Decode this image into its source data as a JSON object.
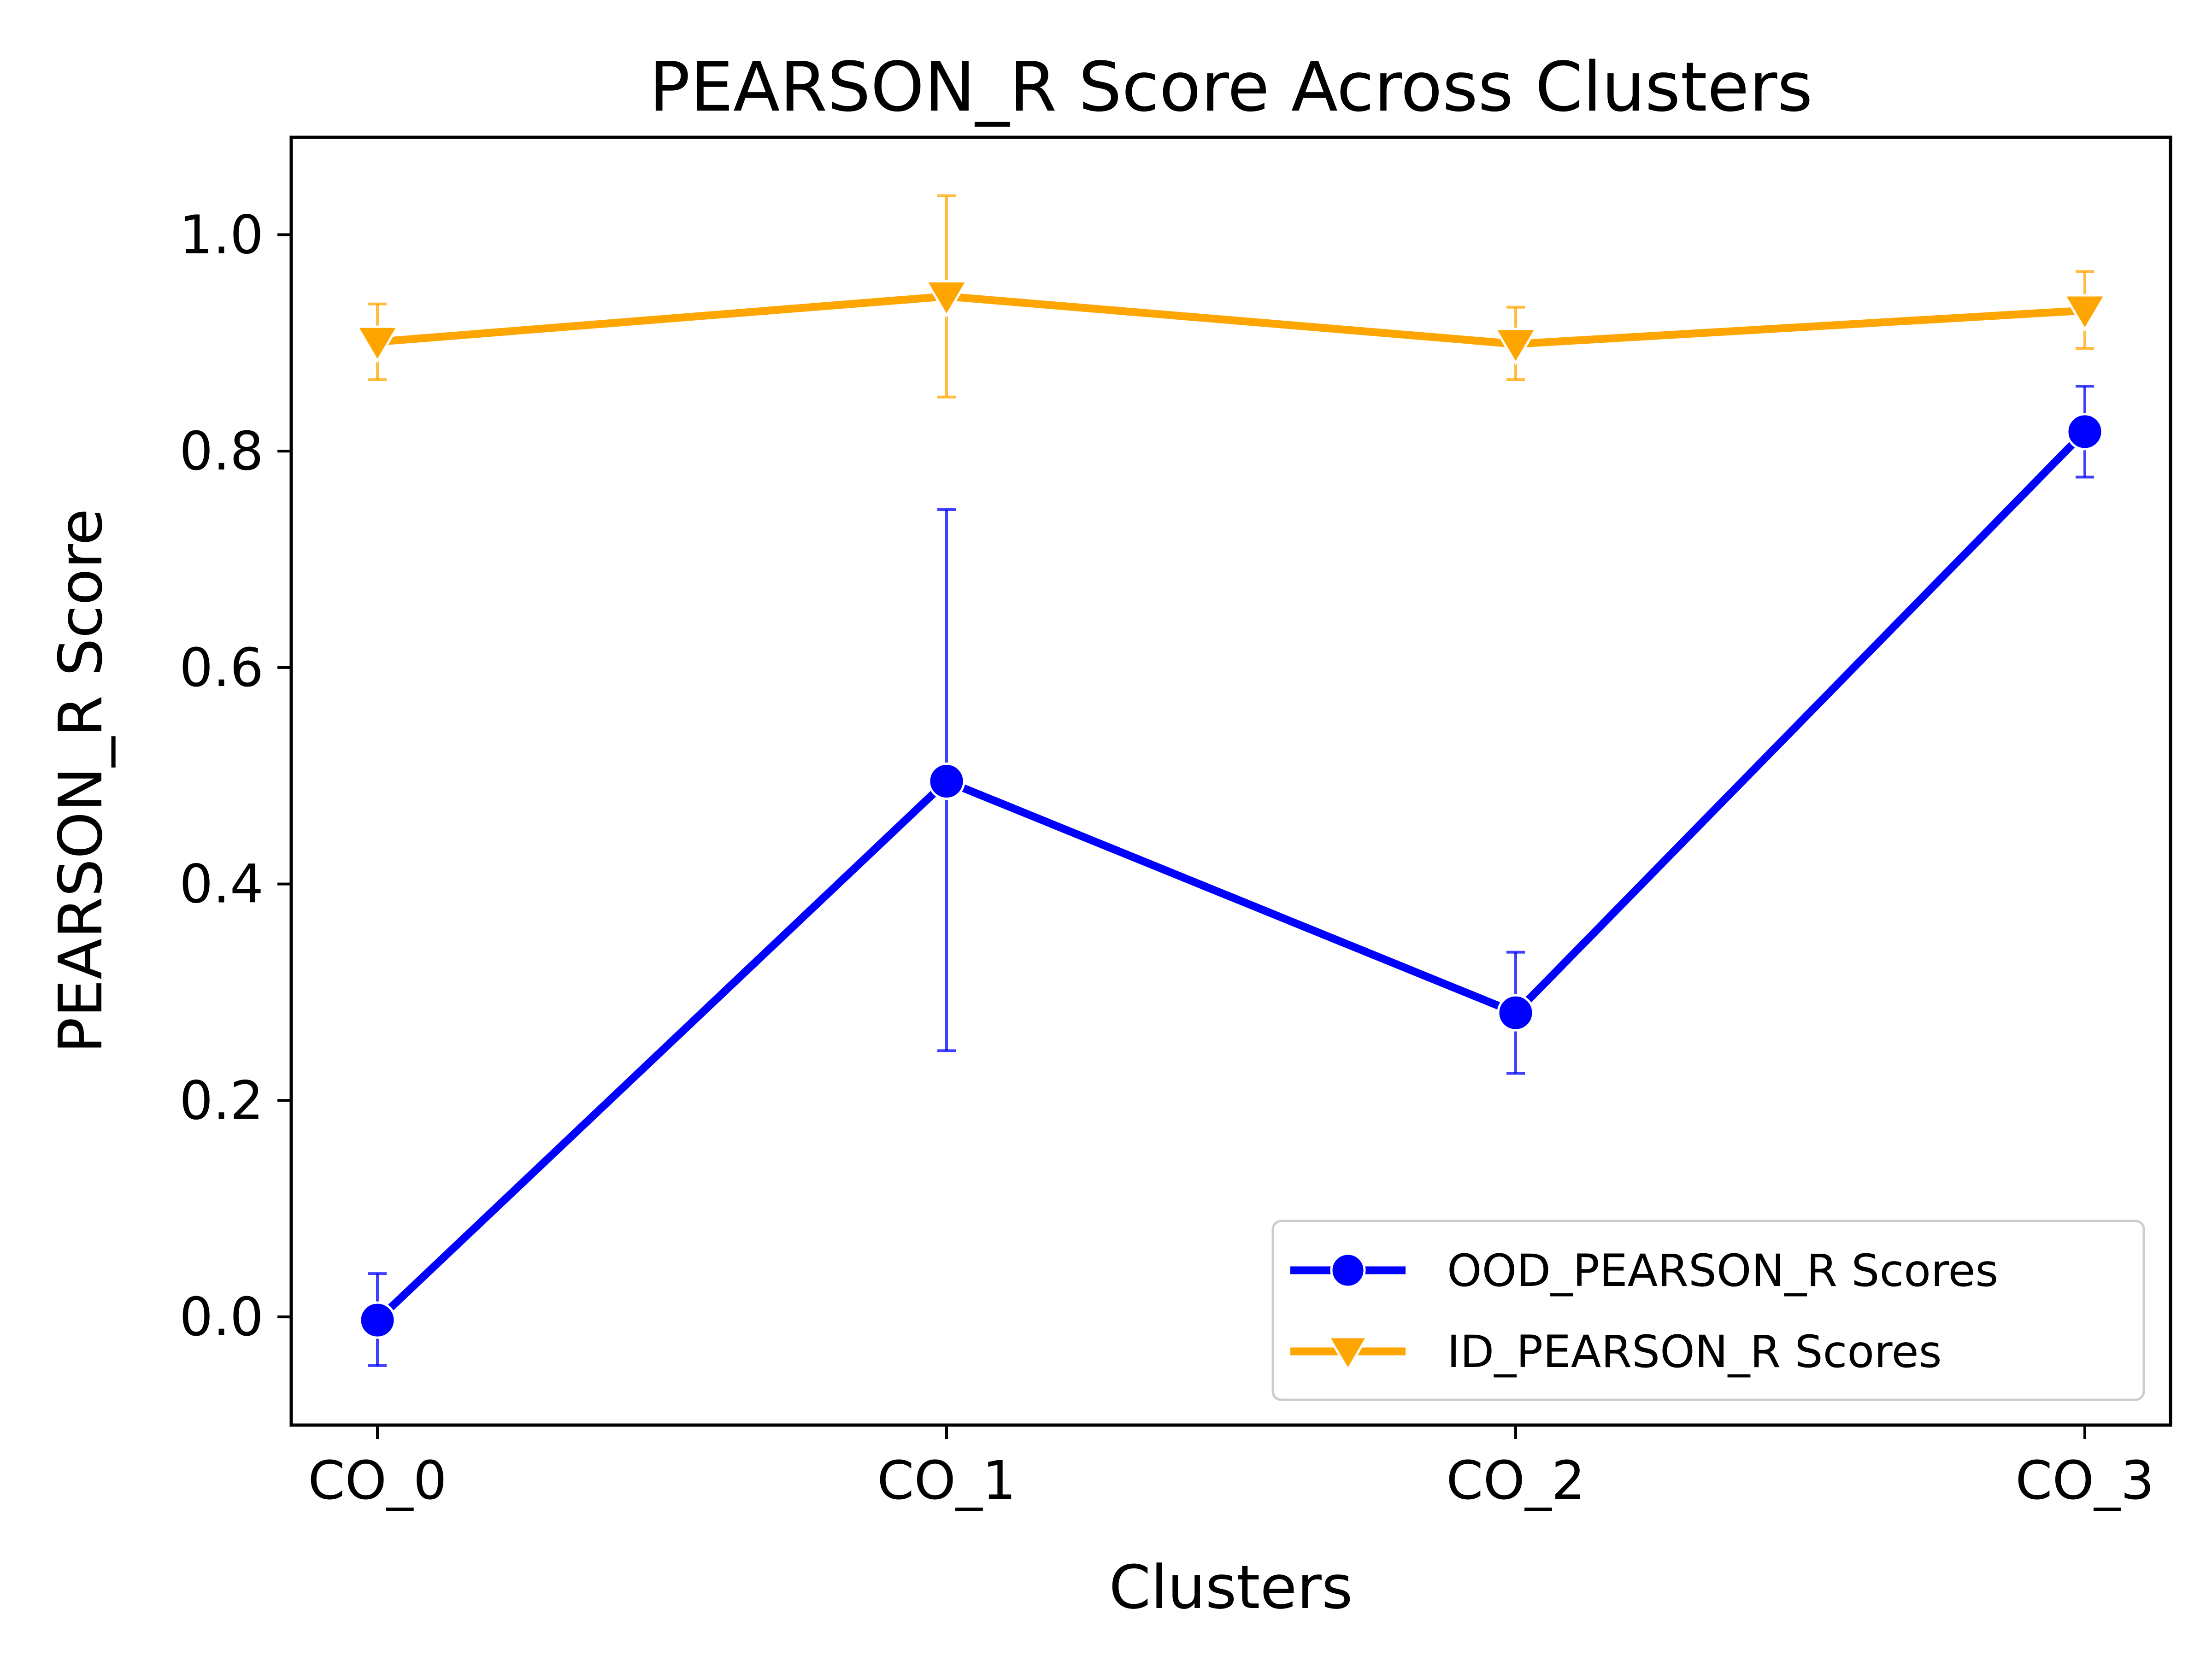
{
  "chart_data": {
    "type": "line",
    "title": "PEARSON_R Score Across Clusters",
    "xlabel": "Clusters",
    "ylabel": "PEARSON_R Score",
    "categories": [
      "CO_0",
      "CO_1",
      "CO_2",
      "CO_3"
    ],
    "ylim": [
      -0.1,
      1.09
    ],
    "yticks": [
      "0.0",
      "0.2",
      "0.4",
      "0.6",
      "0.8",
      "1.0"
    ],
    "grid": false,
    "legend_position": "lower-right",
    "series": [
      {
        "name": "OOD_PEARSON_R Scores",
        "color": "#0000ff",
        "marker": "circle",
        "values": [
          -0.003,
          0.495,
          0.281,
          0.818
        ],
        "err_low": [
          -0.045,
          0.246,
          0.225,
          0.776
        ],
        "err_high": [
          0.04,
          0.746,
          0.337,
          0.86
        ]
      },
      {
        "name": "ID_PEARSON_R Scores",
        "color": "#ffa500",
        "marker": "triangle-down",
        "values": [
          0.901,
          0.943,
          0.899,
          0.93
        ],
        "err_low": [
          0.866,
          0.85,
          0.866,
          0.895
        ],
        "err_high": [
          0.936,
          1.036,
          0.933,
          0.966
        ]
      }
    ]
  }
}
